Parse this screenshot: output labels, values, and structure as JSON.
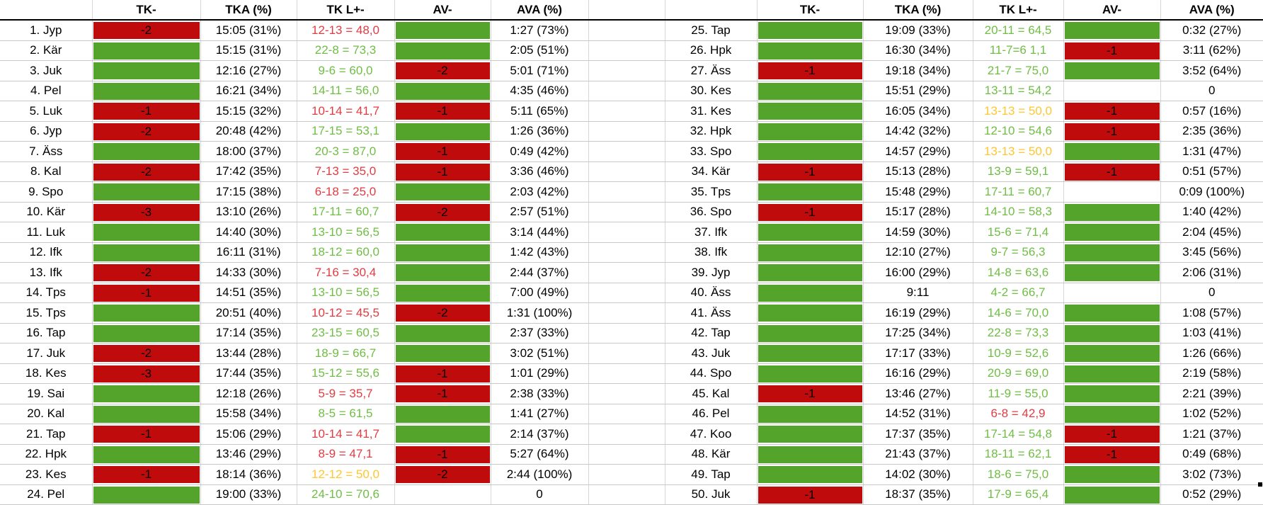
{
  "columns": {
    "label": "",
    "tk": "TK-",
    "tka": "TKA (%)",
    "tkl": "TK L+-",
    "av": "AV-",
    "ava": "AVA (%)"
  },
  "colors": {
    "fill_green": "#54a32a",
    "fill_red": "#c00b0d",
    "text_green": "#6fbe44",
    "text_red": "#e23c42",
    "text_yellow": "#ffc62e",
    "gridline": "#c8c8c8",
    "header_rule": "#000000"
  },
  "left_rows": [
    {
      "label": "1. Jyp",
      "tk_fill": "red",
      "tk": "-2",
      "tka": "15:05 (31%)",
      "tkl": "12-13 = 48,0",
      "tkl_color": "red",
      "av_fill": "green",
      "av": "",
      "ava": "1:27 (73%)"
    },
    {
      "label": "2. Kär",
      "tk_fill": "green",
      "tk": "",
      "tka": "15:15 (31%)",
      "tkl": "22-8 = 73,3",
      "tkl_color": "green",
      "av_fill": "green",
      "av": "",
      "ava": "2:05 (51%)"
    },
    {
      "label": "3. Juk",
      "tk_fill": "green",
      "tk": "",
      "tka": "12:16 (27%)",
      "tkl": "9-6 = 60,0",
      "tkl_color": "green",
      "av_fill": "red",
      "av": "-2",
      "ava": "5:01 (71%)"
    },
    {
      "label": "4. Pel",
      "tk_fill": "green",
      "tk": "",
      "tka": "16:21 (34%)",
      "tkl": "14-11 = 56,0",
      "tkl_color": "green",
      "av_fill": "green",
      "av": "",
      "ava": "4:35 (46%)"
    },
    {
      "label": "5. Luk",
      "tk_fill": "red",
      "tk": "-1",
      "tka": "15:15 (32%)",
      "tkl": "10-14 = 41,7",
      "tkl_color": "red",
      "av_fill": "red",
      "av": "-1",
      "ava": "5:11 (65%)"
    },
    {
      "label": "6. Jyp",
      "tk_fill": "red",
      "tk": "-2",
      "tka": "20:48 (42%)",
      "tkl": "17-15 = 53,1",
      "tkl_color": "green",
      "av_fill": "green",
      "av": "",
      "ava": "1:26 (36%)"
    },
    {
      "label": "7. Äss",
      "tk_fill": "green",
      "tk": "",
      "tka": "18:00 (37%)",
      "tkl": "20-3 = 87,0",
      "tkl_color": "green",
      "av_fill": "red",
      "av": "-1",
      "ava": "0:49 (42%)"
    },
    {
      "label": "8. Kal",
      "tk_fill": "red",
      "tk": "-2",
      "tka": "17:42 (35%)",
      "tkl": "7-13 = 35,0",
      "tkl_color": "red",
      "av_fill": "red",
      "av": "-1",
      "ava": "3:36 (46%)"
    },
    {
      "label": "9. Spo",
      "tk_fill": "green",
      "tk": "",
      "tka": "17:15 (38%)",
      "tkl": "6-18 = 25,0",
      "tkl_color": "red",
      "av_fill": "green",
      "av": "",
      "ava": "2:03 (42%)"
    },
    {
      "label": "10. Kär",
      "tk_fill": "red",
      "tk": "-3",
      "tka": "13:10 (26%)",
      "tkl": "17-11 = 60,7",
      "tkl_color": "green",
      "av_fill": "red",
      "av": "-2",
      "ava": "2:57 (51%)"
    },
    {
      "label": "11. Luk",
      "tk_fill": "green",
      "tk": "",
      "tka": "14:40 (30%)",
      "tkl": "13-10 = 56,5",
      "tkl_color": "green",
      "av_fill": "green",
      "av": "",
      "ava": "3:14 (44%)"
    },
    {
      "label": "12. Ifk",
      "tk_fill": "green",
      "tk": "",
      "tka": "16:11 (31%)",
      "tkl": "18-12 = 60,0",
      "tkl_color": "green",
      "av_fill": "green",
      "av": "",
      "ava": "1:42 (43%)"
    },
    {
      "label": "13. Ifk",
      "tk_fill": "red",
      "tk": "-2",
      "tka": "14:33 (30%)",
      "tkl": "7-16 = 30,4",
      "tkl_color": "red",
      "av_fill": "green",
      "av": "",
      "ava": "2:44 (37%)"
    },
    {
      "label": "14. Tps",
      "tk_fill": "red",
      "tk": "-1",
      "tka": "14:51 (35%)",
      "tkl": "13-10 = 56,5",
      "tkl_color": "green",
      "av_fill": "green",
      "av": "",
      "ava": "7:00 (49%)"
    },
    {
      "label": "15. Tps",
      "tk_fill": "green",
      "tk": "",
      "tka": "20:51 (40%)",
      "tkl": "10-12 = 45,5",
      "tkl_color": "red",
      "av_fill": "red",
      "av": "-2",
      "ava": "1:31 (100%)"
    },
    {
      "label": "16. Tap",
      "tk_fill": "green",
      "tk": "",
      "tka": "17:14 (35%)",
      "tkl": "23-15 = 60,5",
      "tkl_color": "green",
      "av_fill": "green",
      "av": "",
      "ava": "2:37 (33%)"
    },
    {
      "label": "17. Juk",
      "tk_fill": "red",
      "tk": "-2",
      "tka": "13:44 (28%)",
      "tkl": "18-9 = 66,7",
      "tkl_color": "green",
      "av_fill": "green",
      "av": "",
      "ava": "3:02 (51%)"
    },
    {
      "label": "18. Kes",
      "tk_fill": "red",
      "tk": "-3",
      "tka": "17:44 (35%)",
      "tkl": "15-12 = 55,6",
      "tkl_color": "green",
      "av_fill": "red",
      "av": "-1",
      "ava": "1:01 (29%)"
    },
    {
      "label": "19. Sai",
      "tk_fill": "green",
      "tk": "",
      "tka": "12:18 (26%)",
      "tkl": "5-9 = 35,7",
      "tkl_color": "red",
      "av_fill": "red",
      "av": "-1",
      "ava": "2:38 (33%)"
    },
    {
      "label": "20. Kal",
      "tk_fill": "green",
      "tk": "",
      "tka": "15:58 (34%)",
      "tkl": "8-5 = 61,5",
      "tkl_color": "green",
      "av_fill": "green",
      "av": "",
      "ava": "1:41 (27%)"
    },
    {
      "label": "21. Tap",
      "tk_fill": "red",
      "tk": "-1",
      "tka": "15:06 (29%)",
      "tkl": "10-14 = 41,7",
      "tkl_color": "red",
      "av_fill": "green",
      "av": "",
      "ava": "2:14 (37%)"
    },
    {
      "label": "22. Hpk",
      "tk_fill": "green",
      "tk": "",
      "tka": "13:46 (29%)",
      "tkl": "8-9 = 47,1",
      "tkl_color": "red",
      "av_fill": "red",
      "av": "-1",
      "ava": "5:27 (64%)"
    },
    {
      "label": "23. Kes",
      "tk_fill": "red",
      "tk": "-1",
      "tka": "18:14 (36%)",
      "tkl": "12-12 = 50,0",
      "tkl_color": "yellow",
      "av_fill": "red",
      "av": "-2",
      "ava": "2:44 (100%)"
    },
    {
      "label": "24. Pel",
      "tk_fill": "green",
      "tk": "",
      "tka": "19:00 (33%)",
      "tkl": "24-10 = 70,6",
      "tkl_color": "green",
      "av_fill": "none",
      "av": "",
      "ava": "0"
    }
  ],
  "right_rows": [
    {
      "label": "25. Tap",
      "tk_fill": "green",
      "tk": "",
      "tka": "19:09 (33%)",
      "tkl": "20-11 = 64,5",
      "tkl_color": "green",
      "av_fill": "green",
      "av": "",
      "ava": "0:32 (27%)"
    },
    {
      "label": "26. Hpk",
      "tk_fill": "green",
      "tk": "",
      "tka": "16:30 (34%)",
      "tkl": "11-7=6 1,1",
      "tkl_color": "green",
      "av_fill": "red",
      "av": "-1",
      "ava": "3:11 (62%)"
    },
    {
      "label": "27. Äss",
      "tk_fill": "red",
      "tk": "-1",
      "tka": "19:18 (34%)",
      "tkl": "21-7 = 75,0",
      "tkl_color": "green",
      "av_fill": "green",
      "av": "",
      "ava": "3:52 (64%)"
    },
    {
      "label": "30. Kes",
      "tk_fill": "green",
      "tk": "",
      "tka": "15:51 (29%)",
      "tkl": "13-11 = 54,2",
      "tkl_color": "green",
      "av_fill": "none",
      "av": "",
      "ava": "0"
    },
    {
      "label": "31. Kes",
      "tk_fill": "green",
      "tk": "",
      "tka": "16:05 (34%)",
      "tkl": "13-13 = 50,0",
      "tkl_color": "yellow",
      "av_fill": "red",
      "av": "-1",
      "ava": "0:57 (16%)"
    },
    {
      "label": "32. Hpk",
      "tk_fill": "green",
      "tk": "",
      "tka": "14:42 (32%)",
      "tkl": "12-10 = 54,6",
      "tkl_color": "green",
      "av_fill": "red",
      "av": "-1",
      "ava": "2:35 (36%)"
    },
    {
      "label": "33. Spo",
      "tk_fill": "green",
      "tk": "",
      "tka": "14:57 (29%)",
      "tkl": "13-13 = 50,0",
      "tkl_color": "yellow",
      "av_fill": "green",
      "av": "",
      "ava": "1:31 (47%)"
    },
    {
      "label": "34. Kär",
      "tk_fill": "red",
      "tk": "-1",
      "tka": "15:13 (28%)",
      "tkl": "13-9 = 59,1",
      "tkl_color": "green",
      "av_fill": "red",
      "av": "-1",
      "ava": "0:51 (57%)"
    },
    {
      "label": "35. Tps",
      "tk_fill": "green",
      "tk": "",
      "tka": "15:48 (29%)",
      "tkl": "17-11 = 60,7",
      "tkl_color": "green",
      "av_fill": "none",
      "av": "",
      "ava": "0:09 (100%)"
    },
    {
      "label": "36. Spo",
      "tk_fill": "red",
      "tk": "-1",
      "tka": "15:17 (28%)",
      "tkl": "14-10 = 58,3",
      "tkl_color": "green",
      "av_fill": "green",
      "av": "",
      "ava": "1:40 (42%)"
    },
    {
      "label": "37. Ifk",
      "tk_fill": "green",
      "tk": "",
      "tka": "14:59 (30%)",
      "tkl": "15-6 = 71,4",
      "tkl_color": "green",
      "av_fill": "green",
      "av": "",
      "ava": "2:04 (45%)"
    },
    {
      "label": "38. Ifk",
      "tk_fill": "green",
      "tk": "",
      "tka": "12:10 (27%)",
      "tkl": "9-7 = 56,3",
      "tkl_color": "green",
      "av_fill": "green",
      "av": "",
      "ava": "3:45 (56%)"
    },
    {
      "label": "39. Jyp",
      "tk_fill": "green",
      "tk": "",
      "tka": "16:00 (29%)",
      "tkl": "14-8 = 63,6",
      "tkl_color": "green",
      "av_fill": "green",
      "av": "",
      "ava": "2:06 (31%)"
    },
    {
      "label": "40. Äss",
      "tk_fill": "green",
      "tk": "",
      "tka": "9:11",
      "tkl": "4-2 = 66,7",
      "tkl_color": "green",
      "av_fill": "none",
      "av": "",
      "ava": "0"
    },
    {
      "label": "41. Äss",
      "tk_fill": "green",
      "tk": "",
      "tka": "16:19 (29%)",
      "tkl": "14-6 = 70,0",
      "tkl_color": "green",
      "av_fill": "green",
      "av": "",
      "ava": "1:08 (57%)"
    },
    {
      "label": "42. Tap",
      "tk_fill": "green",
      "tk": "",
      "tka": "17:25 (34%)",
      "tkl": "22-8 = 73,3",
      "tkl_color": "green",
      "av_fill": "green",
      "av": "",
      "ava": "1:03 (41%)"
    },
    {
      "label": "43. Juk",
      "tk_fill": "green",
      "tk": "",
      "tka": "17:17 (33%)",
      "tkl": "10-9 = 52,6",
      "tkl_color": "green",
      "av_fill": "green",
      "av": "",
      "ava": "1:26 (66%)"
    },
    {
      "label": "44. Spo",
      "tk_fill": "green",
      "tk": "",
      "tka": "16:16 (29%)",
      "tkl": "20-9 = 69,0",
      "tkl_color": "green",
      "av_fill": "green",
      "av": "",
      "ava": "2:19 (58%)"
    },
    {
      "label": "45. Kal",
      "tk_fill": "red",
      "tk": "-1",
      "tka": "13:46 (27%)",
      "tkl": "11-9 = 55,0",
      "tkl_color": "green",
      "av_fill": "green",
      "av": "",
      "ava": "2:21 (39%)"
    },
    {
      "label": "46. Pel",
      "tk_fill": "green",
      "tk": "",
      "tka": "14:52 (31%)",
      "tkl": "6-8 = 42,9",
      "tkl_color": "red",
      "av_fill": "green",
      "av": "",
      "ava": "1:02 (52%)"
    },
    {
      "label": "47. Koo",
      "tk_fill": "green",
      "tk": "",
      "tka": "17:37 (35%)",
      "tkl": "17-14 = 54,8",
      "tkl_color": "green",
      "av_fill": "red",
      "av": "-1",
      "ava": "1:21 (37%)"
    },
    {
      "label": "48. Kär",
      "tk_fill": "green",
      "tk": "",
      "tka": "21:43 (37%)",
      "tkl": "18-11 = 62,1",
      "tkl_color": "green",
      "av_fill": "red",
      "av": "-1",
      "ava": "0:49 (68%)"
    },
    {
      "label": "49. Tap",
      "tk_fill": "green",
      "tk": "",
      "tka": "14:02 (30%)",
      "tkl": "18-6 = 75,0",
      "tkl_color": "green",
      "av_fill": "green",
      "av": "",
      "ava": "3:02 (73%)"
    },
    {
      "label": "50. Juk",
      "tk_fill": "red",
      "tk": "-1",
      "tka": "18:37 (35%)",
      "tkl": "17-9 = 65,4",
      "tkl_color": "green",
      "av_fill": "green",
      "av": "",
      "ava": "0:52 (29%)"
    }
  ]
}
